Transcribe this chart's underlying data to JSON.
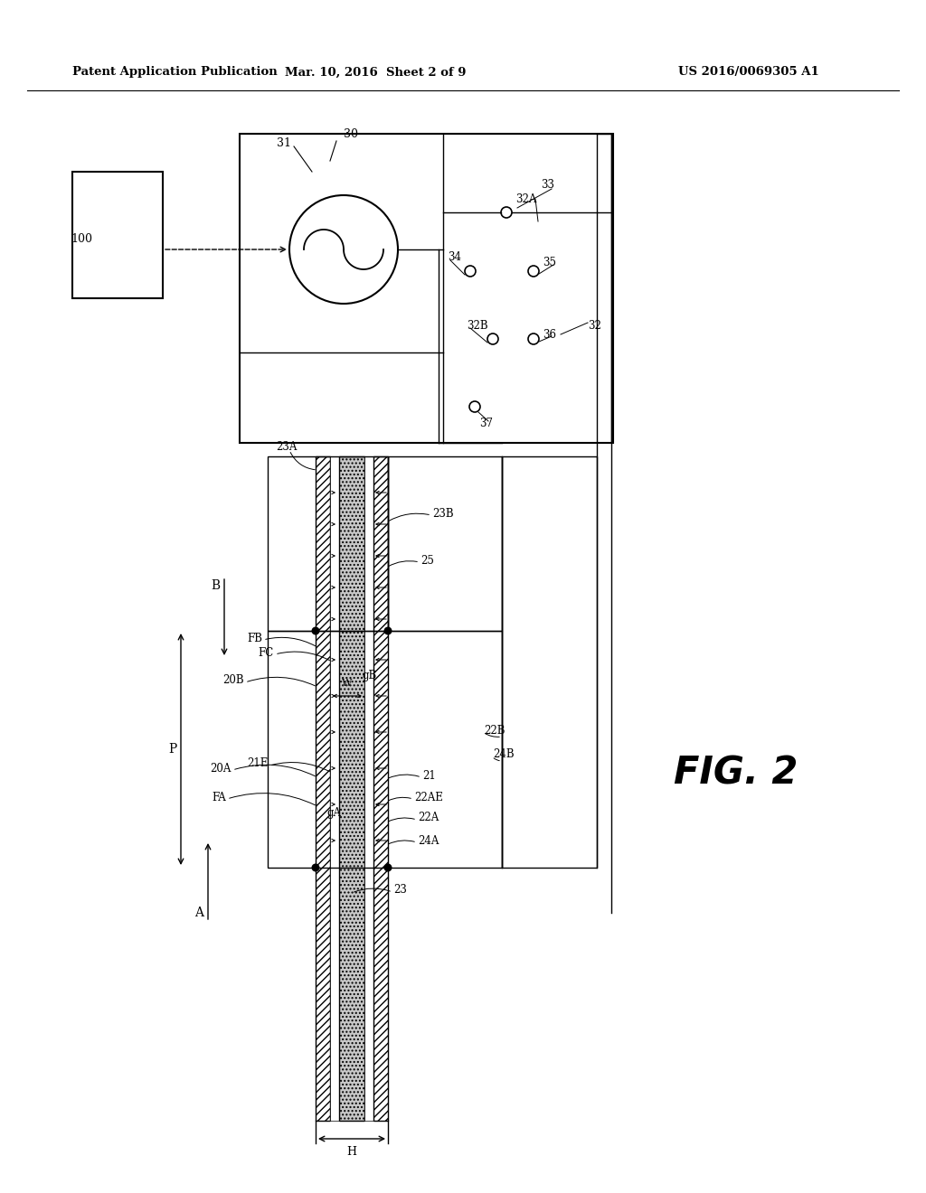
{
  "bg_color": "#ffffff",
  "lc": "#000000",
  "header_text1": "Patent Application Publication",
  "header_text2": "Mar. 10, 2016  Sheet 2 of 9",
  "header_text3": "US 2016/0069305 A1",
  "fig_label": "FIG. 2"
}
